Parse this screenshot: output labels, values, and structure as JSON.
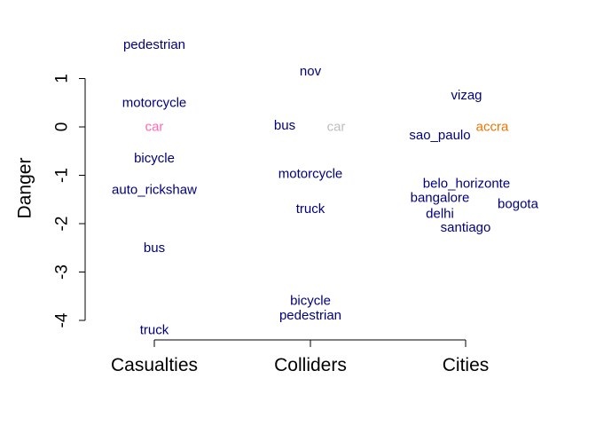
{
  "chart_data": {
    "type": "scatter",
    "title": "",
    "xlabel": "",
    "ylabel": "Danger",
    "ylim": [
      -4.2,
      1.6
    ],
    "yticks": [
      -4,
      -3,
      -2,
      -1,
      0,
      1
    ],
    "categories": [
      "Casualties",
      "Colliders",
      "Cities"
    ],
    "grid": false,
    "legend": "none",
    "colors": {
      "default": "#000080",
      "car_casualties": "#ff69b4",
      "car_colliders": "#bebebe",
      "accra": "#ee7600"
    },
    "series": [
      {
        "category": "Casualties",
        "points": [
          {
            "label": "pedestrian",
            "y": 1.7,
            "color": "#000080"
          },
          {
            "label": "motorcycle",
            "y": 0.5,
            "color": "#000080"
          },
          {
            "label": "car",
            "y": 0.0,
            "color": "#ff69b4"
          },
          {
            "label": "bicycle",
            "y": -0.65,
            "color": "#000080"
          },
          {
            "label": "auto_rickshaw",
            "y": -1.3,
            "color": "#000080"
          },
          {
            "label": "bus",
            "y": -2.5,
            "color": "#000080"
          },
          {
            "label": "truck",
            "y": -4.2,
            "color": "#000080"
          }
        ]
      },
      {
        "category": "Colliders",
        "points": [
          {
            "label": "nov",
            "y": 1.15,
            "color": "#000080"
          },
          {
            "label": "bus",
            "y": 0.03,
            "color": "#000080"
          },
          {
            "label": "car",
            "y": 0.0,
            "color": "#bebebe"
          },
          {
            "label": "motorcycle",
            "y": -0.97,
            "color": "#000080"
          },
          {
            "label": "truck",
            "y": -1.7,
            "color": "#000080"
          },
          {
            "label": "bicycle",
            "y": -3.6,
            "color": "#000080"
          },
          {
            "label": "pedestrian",
            "y": -3.9,
            "color": "#000080"
          }
        ]
      },
      {
        "category": "Cities",
        "points": [
          {
            "label": "vizag",
            "y": 0.65,
            "color": "#000080"
          },
          {
            "label": "accra",
            "y": 0.0,
            "color": "#ee7600"
          },
          {
            "label": "sao_paulo",
            "y": -0.17,
            "color": "#000080"
          },
          {
            "label": "belo_horizonte",
            "y": -1.17,
            "color": "#000080"
          },
          {
            "label": "bangalore",
            "y": -1.47,
            "color": "#000080"
          },
          {
            "label": "bogota",
            "y": -1.6,
            "color": "#000080"
          },
          {
            "label": "delhi",
            "y": -1.8,
            "color": "#000080"
          },
          {
            "label": "santiago",
            "y": -2.08,
            "color": "#000080"
          }
        ]
      }
    ]
  }
}
